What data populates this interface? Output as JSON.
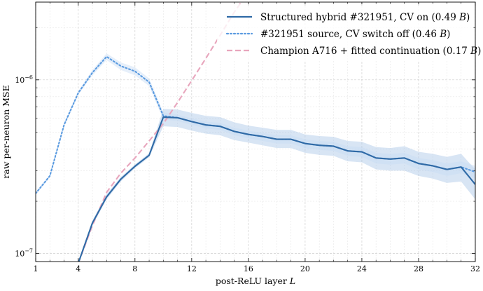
{
  "chart_data": {
    "type": "line",
    "xlabel": "post-ReLU layer L",
    "xlabel_parts": [
      "post-ReLU layer ",
      "L"
    ],
    "ylabel": "raw per-neuron MSE",
    "xlim": [
      1,
      32
    ],
    "ylim": [
      9e-08,
      2.8e-06
    ],
    "yscale": "log",
    "grid": true,
    "legend_position": "top-right",
    "x_ticks": [
      1,
      4,
      8,
      12,
      16,
      20,
      24,
      28,
      32
    ],
    "x_tick_labels": [
      "1",
      "4",
      "8",
      "12",
      "16",
      "20",
      "24",
      "28",
      "32"
    ],
    "y_ticks": [
      1e-07,
      1e-06
    ],
    "y_tick_labels": [
      "10−7",
      "10−6"
    ],
    "series": [
      {
        "name": "Structured hybrid #321951, CV on (0.49 B)",
        "legend_parts": [
          "Structured hybrid #321951, CV on (0.49 ",
          "B",
          ")"
        ],
        "color": "#2f6aa6",
        "style": "solid",
        "band_color": "#a9c5e6",
        "x": [
          4,
          5,
          6,
          7,
          8,
          9,
          10,
          11,
          12,
          13,
          14,
          15,
          16,
          17,
          18,
          19,
          20,
          21,
          22,
          23,
          24,
          25,
          26,
          27,
          28,
          29,
          30,
          31,
          32
        ],
        "values": [
          8.8e-08,
          1.5e-07,
          2.12e-07,
          2.68e-07,
          3.18e-07,
          3.68e-07,
          6.1e-07,
          6.05e-07,
          5.75e-07,
          5.5e-07,
          5.4e-07,
          5.05e-07,
          4.85e-07,
          4.72e-07,
          4.55e-07,
          4.55e-07,
          4.3e-07,
          4.2e-07,
          4.15e-07,
          3.9e-07,
          3.85e-07,
          3.55e-07,
          3.5e-07,
          3.55e-07,
          3.3e-07,
          3.2e-07,
          3.05e-07,
          3.15e-07,
          2.5e-07
        ],
        "lower": [
          8.6e-08,
          1.45e-07,
          2.05e-07,
          2.6e-07,
          3.1e-07,
          3.58e-07,
          5.4e-07,
          5.35e-07,
          5.1e-07,
          4.9e-07,
          4.8e-07,
          4.5e-07,
          4.35e-07,
          4.2e-07,
          4.05e-07,
          4.05e-07,
          3.8e-07,
          3.7e-07,
          3.65e-07,
          3.4e-07,
          3.35e-07,
          3.05e-07,
          3e-07,
          3e-07,
          2.8e-07,
          2.7e-07,
          2.55e-07,
          2.6e-07,
          2.05e-07
        ],
        "upper": [
          9e-08,
          1.55e-07,
          2.2e-07,
          2.76e-07,
          3.26e-07,
          3.78e-07,
          6.8e-07,
          6.75e-07,
          6.45e-07,
          6.2e-07,
          6.1e-07,
          5.7e-07,
          5.45e-07,
          5.3e-07,
          5.15e-07,
          5.15e-07,
          4.85e-07,
          4.75e-07,
          4.7e-07,
          4.45e-07,
          4.4e-07,
          4.1e-07,
          4.05e-07,
          4.15e-07,
          3.85e-07,
          3.75e-07,
          3.6e-07,
          3.75e-07,
          3.05e-07
        ]
      },
      {
        "name": "#321951 source, CV switch off (0.46 B)",
        "legend_parts": [
          "#321951 source, CV switch off (0.46 ",
          "B",
          ")"
        ],
        "color": "#5b9be0",
        "style": "dotted",
        "band_color": "#c7dcf3",
        "x": [
          1,
          2,
          3,
          4,
          5,
          6,
          7,
          8,
          9,
          10,
          11,
          12,
          13,
          14,
          15,
          16,
          17,
          18,
          19,
          20,
          21,
          22,
          23,
          24,
          25,
          26,
          27,
          28,
          29,
          30,
          31,
          32
        ],
        "values": [
          2.22e-07,
          2.8e-07,
          5.5e-07,
          8.4e-07,
          1.1e-06,
          1.36e-06,
          1.2e-06,
          1.12e-06,
          9.7e-07,
          6.2e-07,
          6.05e-07,
          5.75e-07,
          5.5e-07,
          5.4e-07,
          5.05e-07,
          4.85e-07,
          4.72e-07,
          4.55e-07,
          4.55e-07,
          4.3e-07,
          4.2e-07,
          4.15e-07,
          3.9e-07,
          3.85e-07,
          3.55e-07,
          3.5e-07,
          3.55e-07,
          3.3e-07,
          3.2e-07,
          3.05e-07,
          3.15e-07,
          2.95e-07
        ],
        "lower": [
          2.18e-07,
          2.74e-07,
          5.38e-07,
          8.2e-07,
          1.06e-06,
          1.3e-06,
          1.14e-06,
          1.06e-06,
          9.2e-07,
          5.9e-07,
          5.8e-07,
          5.5e-07,
          5.25e-07,
          5.15e-07,
          4.8e-07,
          4.6e-07,
          4.45e-07,
          4.3e-07,
          4.3e-07,
          4.05e-07,
          3.95e-07,
          3.9e-07,
          3.65e-07,
          3.6e-07,
          3.3e-07,
          3.25e-07,
          3.3e-07,
          3.05e-07,
          2.95e-07,
          2.8e-07,
          2.9e-07,
          2.7e-07
        ],
        "upper": [
          2.26e-07,
          2.86e-07,
          5.62e-07,
          8.6e-07,
          1.14e-06,
          1.42e-06,
          1.26e-06,
          1.18e-06,
          1.02e-06,
          6.5e-07,
          6.3e-07,
          6e-07,
          5.75e-07,
          5.65e-07,
          5.3e-07,
          5.1e-07,
          4.95e-07,
          4.8e-07,
          4.8e-07,
          4.55e-07,
          4.45e-07,
          4.4e-07,
          4.15e-07,
          4.1e-07,
          3.8e-07,
          3.75e-07,
          3.8e-07,
          3.55e-07,
          3.45e-07,
          3.3e-07,
          3.4e-07,
          3.2e-07
        ]
      },
      {
        "name": "Champion A716 + fitted continuation (0.17 B)",
        "legend_parts": [
          "Champion A716 + fitted continuation (0.17 ",
          "B",
          ")"
        ],
        "color": "#e8a6bd",
        "style": "dashed",
        "x": [
          4,
          5,
          6,
          7,
          8,
          9,
          10,
          11,
          12,
          13,
          14,
          15,
          16
        ],
        "values": [
          8.8e-08,
          1.45e-07,
          2.25e-07,
          2.9e-07,
          3.55e-07,
          4.45e-07,
          5.6e-07,
          7.4e-07,
          9.9e-07,
          1.33e-06,
          1.8e-06,
          2.45e-06,
          3.2e-06
        ]
      }
    ]
  }
}
